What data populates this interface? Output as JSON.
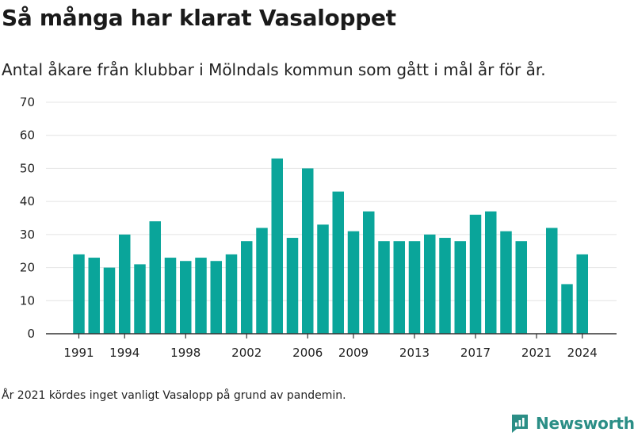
{
  "header": {
    "title": "Så många har klarat Vasaloppet",
    "subtitle": "Antal åkare från klubbar i Mölndals kommun som gått i mål år för år."
  },
  "footnote": "År 2021 kördes inget vanligt Vasalopp på grund av pandemin.",
  "brand": {
    "name": "Newsworthy",
    "icon": "newsworthy-logo-icon",
    "color": "#2b8e86"
  },
  "chart_data": {
    "type": "bar",
    "bar_color": "#0aa59a",
    "x": [
      1991,
      1992,
      1993,
      1994,
      1995,
      1996,
      1997,
      1998,
      1999,
      2000,
      2001,
      2002,
      2003,
      2004,
      2005,
      2006,
      2007,
      2008,
      2009,
      2010,
      2011,
      2012,
      2013,
      2014,
      2015,
      2016,
      2017,
      2018,
      2019,
      2020,
      2021,
      2022,
      2023,
      2024
    ],
    "values": [
      24,
      23,
      20,
      30,
      21,
      34,
      23,
      22,
      23,
      22,
      24,
      28,
      32,
      53,
      29,
      50,
      33,
      43,
      31,
      37,
      28,
      28,
      28,
      30,
      29,
      28,
      36,
      37,
      31,
      28,
      0,
      32,
      15,
      24
    ],
    "x_ticks": [
      1991,
      1994,
      1998,
      2002,
      2006,
      2009,
      2013,
      2017,
      2021,
      2024
    ],
    "y_ticks": [
      0,
      10,
      20,
      30,
      40,
      50,
      60,
      70
    ],
    "ylim": [
      0,
      70
    ],
    "grid": true
  }
}
